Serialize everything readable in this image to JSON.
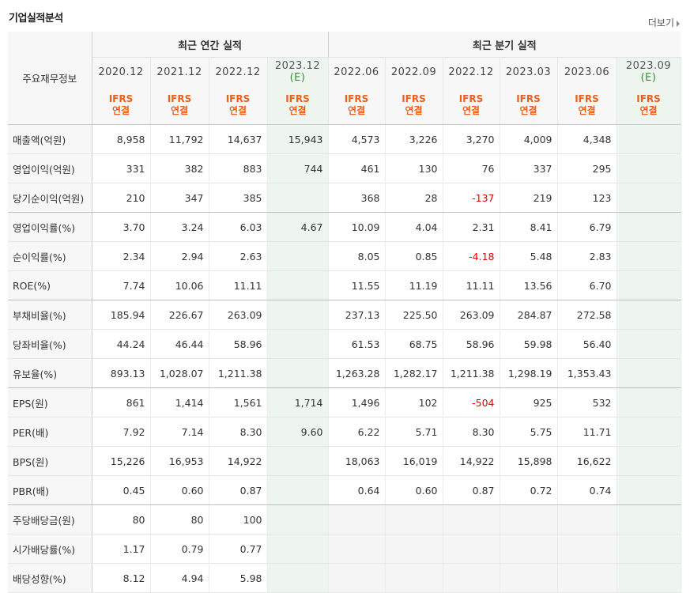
{
  "section_title": "기업실적분석",
  "more_label": "더보기",
  "header": {
    "row_label": "주요재무정보",
    "annual_group": "최근 연간 실적",
    "quarter_group": "최근 분기 실적",
    "periods": [
      {
        "label": "2020.12",
        "est": "",
        "basis1": "IFRS",
        "basis2": "연결"
      },
      {
        "label": "2021.12",
        "est": "",
        "basis1": "IFRS",
        "basis2": "연결"
      },
      {
        "label": "2022.12",
        "est": "",
        "basis1": "IFRS",
        "basis2": "연결"
      },
      {
        "label": "2023.12",
        "est": "(E)",
        "basis1": "IFRS",
        "basis2": "연결"
      },
      {
        "label": "2022.06",
        "est": "",
        "basis1": "IFRS",
        "basis2": "연결"
      },
      {
        "label": "2022.09",
        "est": "",
        "basis1": "IFRS",
        "basis2": "연결"
      },
      {
        "label": "2022.12",
        "est": "",
        "basis1": "IFRS",
        "basis2": "연결"
      },
      {
        "label": "2023.03",
        "est": "",
        "basis1": "IFRS",
        "basis2": "연결"
      },
      {
        "label": "2023.06",
        "est": "",
        "basis1": "IFRS",
        "basis2": "연결"
      },
      {
        "label": "2023.09",
        "est": "(E)",
        "basis1": "IFRS",
        "basis2": "연결"
      }
    ]
  },
  "rows": [
    {
      "label": "매출액(억원)",
      "values": [
        "8,958",
        "11,792",
        "14,637",
        "15,943",
        "4,573",
        "3,226",
        "3,270",
        "4,009",
        "4,348",
        ""
      ]
    },
    {
      "label": "영업이익(억원)",
      "values": [
        "331",
        "382",
        "883",
        "744",
        "461",
        "130",
        "76",
        "337",
        "295",
        ""
      ]
    },
    {
      "label": "당기순이익(억원)",
      "values": [
        "210",
        "347",
        "385",
        "",
        "368",
        "28",
        "-137",
        "219",
        "123",
        ""
      ]
    },
    {
      "label": "영업이익률(%)",
      "values": [
        "3.70",
        "3.24",
        "6.03",
        "4.67",
        "10.09",
        "4.04",
        "2.31",
        "8.41",
        "6.79",
        ""
      ]
    },
    {
      "label": "순이익률(%)",
      "values": [
        "2.34",
        "2.94",
        "2.63",
        "",
        "8.05",
        "0.85",
        "-4.18",
        "5.48",
        "2.83",
        ""
      ]
    },
    {
      "label": "ROE(%)",
      "values": [
        "7.74",
        "10.06",
        "11.11",
        "",
        "11.55",
        "11.19",
        "11.11",
        "13.56",
        "6.70",
        ""
      ]
    },
    {
      "label": "부채비율(%)",
      "values": [
        "185.94",
        "226.67",
        "263.09",
        "",
        "237.13",
        "225.50",
        "263.09",
        "284.87",
        "272.58",
        ""
      ]
    },
    {
      "label": "당좌비율(%)",
      "values": [
        "44.24",
        "46.44",
        "58.96",
        "",
        "61.53",
        "68.75",
        "58.96",
        "59.98",
        "56.40",
        ""
      ]
    },
    {
      "label": "유보율(%)",
      "values": [
        "893.13",
        "1,028.07",
        "1,211.38",
        "",
        "1,263.28",
        "1,282.17",
        "1,211.38",
        "1,298.19",
        "1,353.43",
        ""
      ]
    },
    {
      "label": "EPS(원)",
      "values": [
        "861",
        "1,414",
        "1,561",
        "1,714",
        "1,496",
        "102",
        "-504",
        "925",
        "532",
        ""
      ]
    },
    {
      "label": "PER(배)",
      "values": [
        "7.92",
        "7.14",
        "8.30",
        "9.60",
        "6.22",
        "5.71",
        "8.30",
        "5.75",
        "11.71",
        ""
      ]
    },
    {
      "label": "BPS(원)",
      "values": [
        "15,226",
        "16,953",
        "14,922",
        "",
        "18,063",
        "16,019",
        "14,922",
        "15,898",
        "16,622",
        ""
      ]
    },
    {
      "label": "PBR(배)",
      "values": [
        "0.45",
        "0.60",
        "0.87",
        "",
        "0.64",
        "0.60",
        "0.87",
        "0.72",
        "0.74",
        ""
      ]
    },
    {
      "label": "주당배당금(원)",
      "values": [
        "80",
        "80",
        "100",
        "",
        "",
        "",
        "",
        "",
        "",
        ""
      ]
    },
    {
      "label": "시가배당률(%)",
      "values": [
        "1.17",
        "0.79",
        "0.77",
        "",
        "",
        "",
        "",
        "",
        "",
        ""
      ]
    },
    {
      "label": "배당성향(%)",
      "values": [
        "8.12",
        "4.94",
        "5.98",
        "",
        "",
        "",
        "",
        "",
        "",
        ""
      ]
    }
  ],
  "group_ends": [
    2,
    5,
    8,
    12
  ],
  "colors": {
    "accent": "#e8611f",
    "negative": "#e00000",
    "estimate_bg": "#eef5ee",
    "estimate_text": "#3a8a3a"
  }
}
